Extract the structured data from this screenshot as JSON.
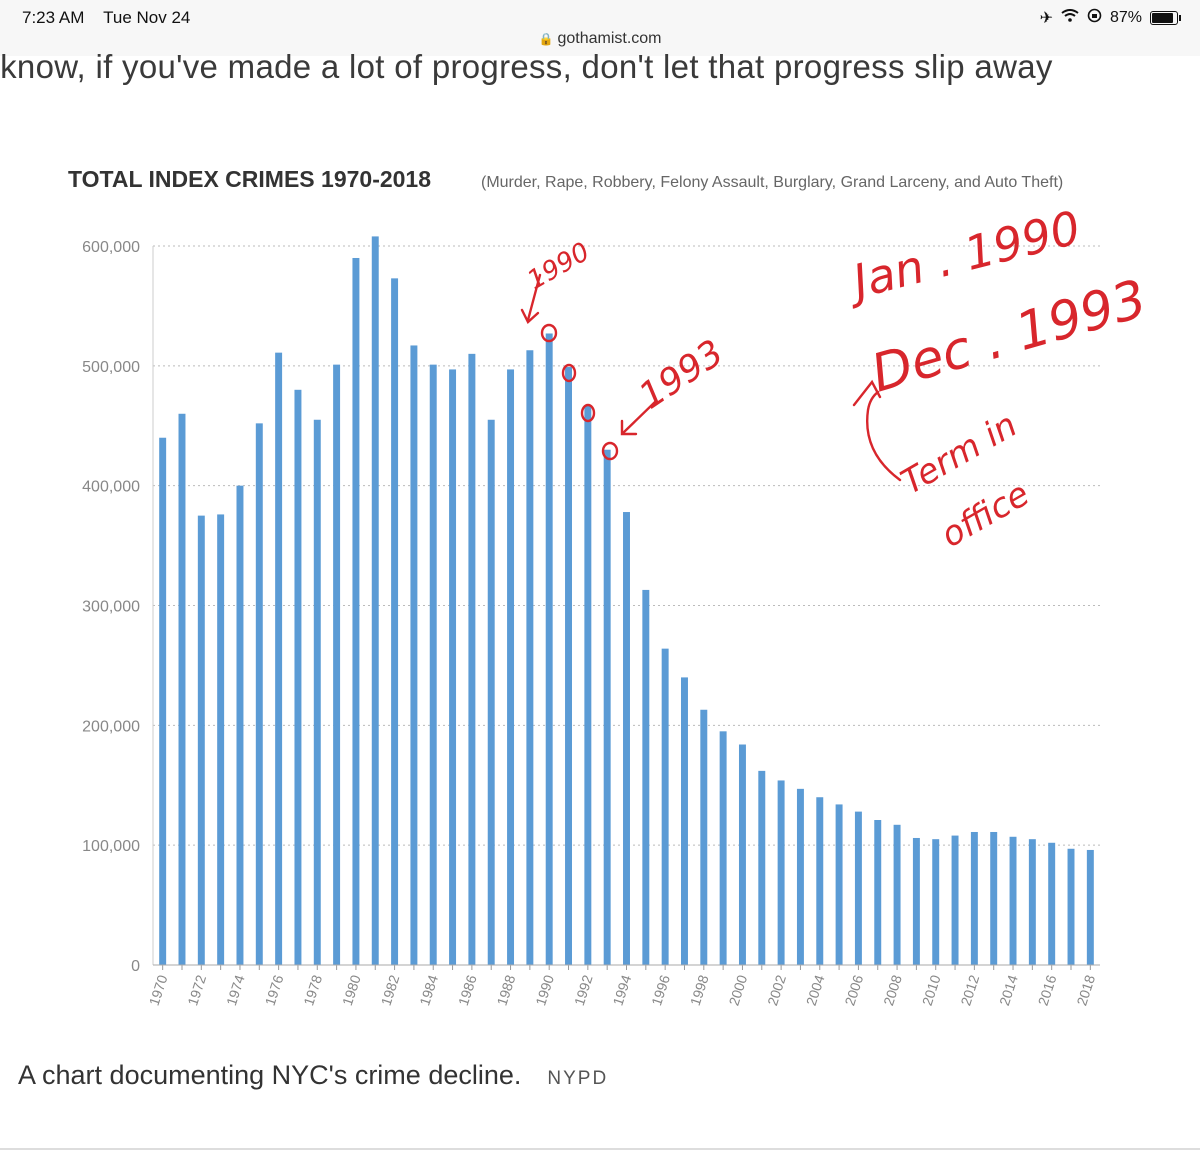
{
  "status": {
    "time": "7:23 AM",
    "date": "Tue Nov 24",
    "battery": "87%",
    "battery_level": 0.87,
    "icons": [
      "airplane-icon",
      "wifi-icon",
      "orientation-lock-icon",
      "battery-icon"
    ]
  },
  "browser": {
    "url": "gothamist.com",
    "lock_icon": "lock-icon"
  },
  "article": {
    "quote_fragment": "u know, if you've made a lot of progress, don't let that progress slip away",
    "caption": "A chart documenting NYC's crime decline.",
    "credit": "NYPD"
  },
  "annotations": {
    "label_1990": "1990",
    "label_1993": "1993",
    "jan": "Jan . 1990",
    "dec": "Dec . 1993",
    "term1": "Term in",
    "term2": "office",
    "color": "#d8262c"
  },
  "chart_data": {
    "type": "bar",
    "title": "TOTAL INDEX CRIMES 1970-2018",
    "subtitle": "(Murder, Rape, Robbery, Felony Assault, Burglary, Grand Larceny, and Auto Theft)",
    "bar_color": "#5b9bd5",
    "ylim": [
      0,
      600000
    ],
    "yticks": [
      0,
      100000,
      200000,
      300000,
      400000,
      500000,
      600000
    ],
    "ytick_labels": [
      "0",
      "100,000",
      "200,000",
      "300,000",
      "400,000",
      "500,000",
      "600,000"
    ],
    "grid": "dotted horizontal",
    "categories": [
      "1970",
      "1971",
      "1972",
      "1973",
      "1974",
      "1975",
      "1976",
      "1977",
      "1978",
      "1979",
      "1980",
      "1981",
      "1982",
      "1983",
      "1984",
      "1985",
      "1986",
      "1987",
      "1988",
      "1989",
      "1990",
      "1991",
      "1992",
      "1993",
      "1994",
      "1995",
      "1996",
      "1997",
      "1998",
      "1999",
      "2000",
      "2001",
      "2002",
      "2003",
      "2004",
      "2005",
      "2006",
      "2007",
      "2008",
      "2009",
      "2010",
      "2011",
      "2012",
      "2013",
      "2014",
      "2015",
      "2016",
      "2017",
      "2018"
    ],
    "xtick_labels": [
      "1970",
      "1972",
      "1974",
      "1976",
      "1978",
      "1980",
      "1982",
      "1984",
      "1986",
      "1988",
      "1990",
      "1992",
      "1994",
      "1996",
      "1998",
      "2000",
      "2002",
      "2004",
      "2006",
      "2008",
      "2010",
      "2012",
      "2014",
      "2016",
      "2018"
    ],
    "values": [
      440000,
      460000,
      375000,
      376000,
      400000,
      452000,
      511000,
      480000,
      455000,
      501000,
      590000,
      608000,
      573000,
      517000,
      501000,
      497000,
      510000,
      455000,
      497000,
      513000,
      527000,
      499000,
      467000,
      430000,
      378000,
      313000,
      264000,
      240000,
      213000,
      195000,
      184000,
      162000,
      154000,
      147000,
      140000,
      134000,
      128000,
      121000,
      117000,
      106000,
      105000,
      108000,
      111000,
      111000,
      107000,
      105000,
      102000,
      97000,
      96000
    ]
  }
}
